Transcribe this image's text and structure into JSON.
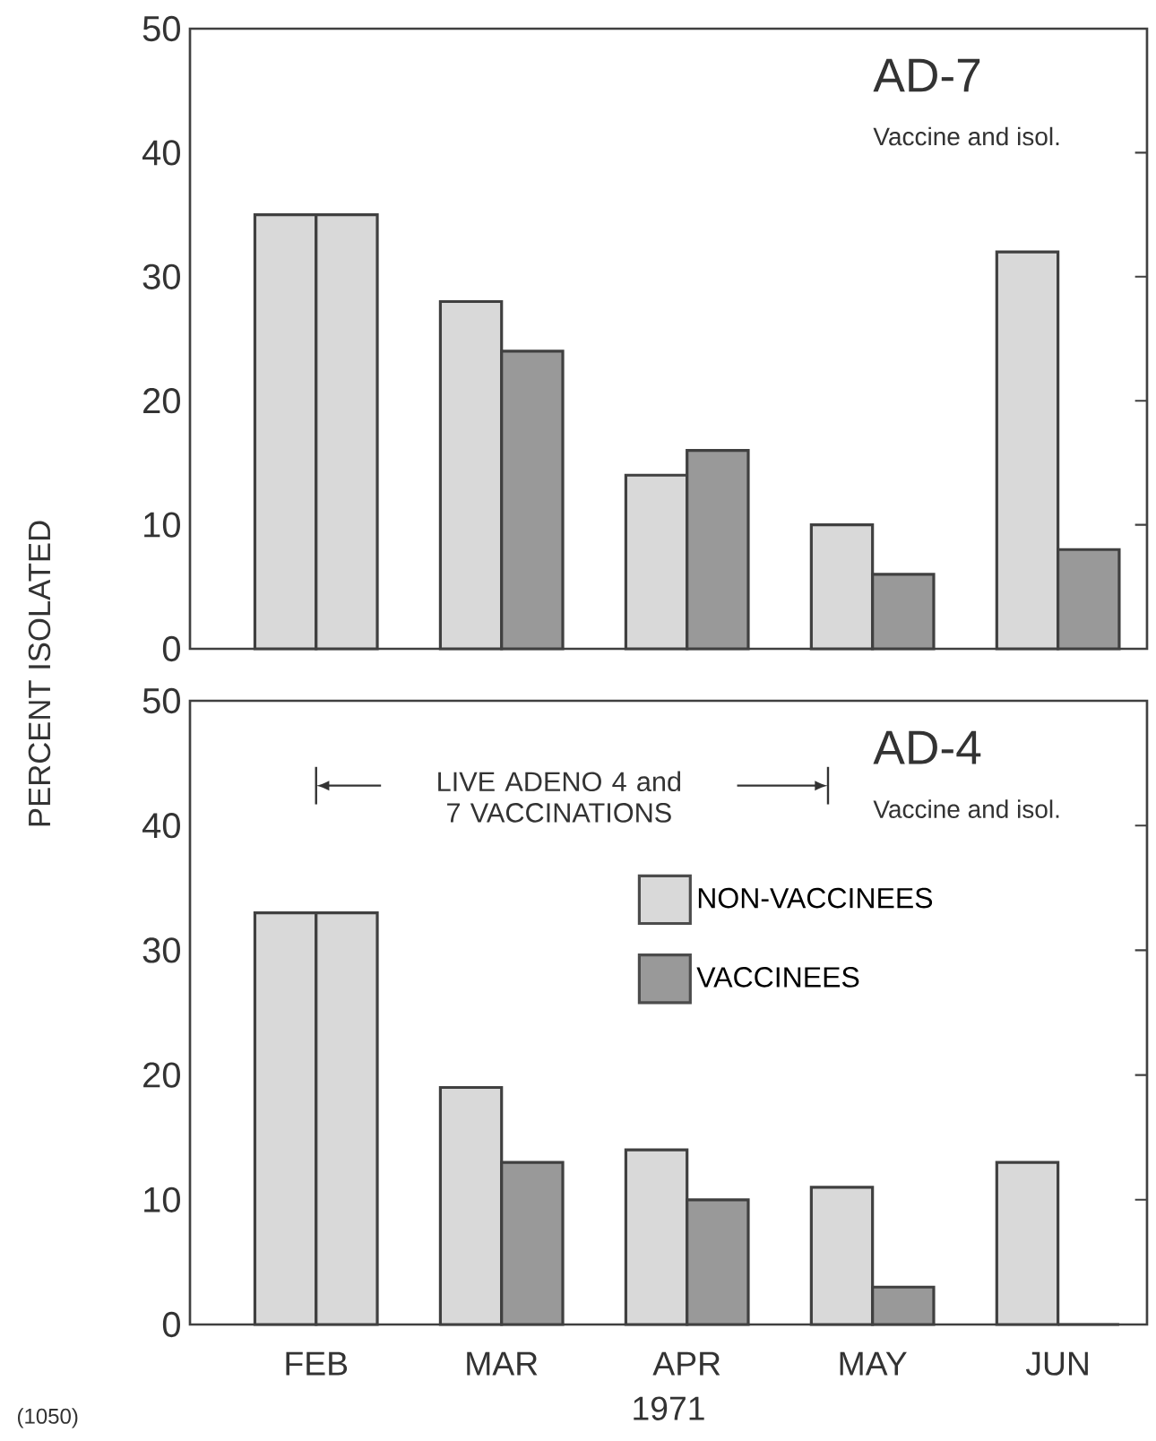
{
  "chart_data": [
    {
      "type": "bar",
      "title": "AD-7",
      "subtitle": "Vaccine and isol.",
      "ylabel": "PERCENT ISOLATED",
      "categories": [
        null,
        null,
        null,
        null,
        null
      ],
      "series": [
        {
          "color": "#d9d9d9",
          "values": [
            35,
            28,
            14,
            10,
            32
          ]
        },
        {
          "color": "#999999",
          "colors": [
            "#d9d9d9",
            "#999999",
            "#999999",
            "#999999",
            "#999999"
          ],
          "values": [
            35,
            24,
            16,
            6,
            8
          ]
        }
      ],
      "ylim": [
        0,
        50
      ],
      "yticks": [
        0,
        10,
        20,
        30,
        40,
        50
      ],
      "tick_labels": "y",
      "legend": false
    },
    {
      "type": "bar",
      "title": "AD-4",
      "subtitle": "Vaccine and isol.",
      "xlabel": "1971",
      "categories": [
        "FEB",
        "MAR",
        "APR",
        "MAY",
        "JUN"
      ],
      "series": [
        {
          "name": "NON-VACCINEES",
          "color": "#d9d9d9",
          "values": [
            33,
            19,
            14,
            11,
            13
          ]
        },
        {
          "name": "VACCINEES",
          "color": "#999999",
          "colors": [
            "#d9d9d9",
            "#999999",
            "#999999",
            "#999999",
            "#999999"
          ],
          "values": [
            33,
            13,
            10,
            3,
            0
          ]
        }
      ],
      "ylim": [
        0,
        50
      ],
      "yticks": [
        0,
        10,
        20,
        30,
        40,
        50
      ],
      "legend": "center",
      "annotations": [
        "LIVE ADENO 4 and 7 VACCINATIONS",
        "(1050)"
      ]
    }
  ]
}
